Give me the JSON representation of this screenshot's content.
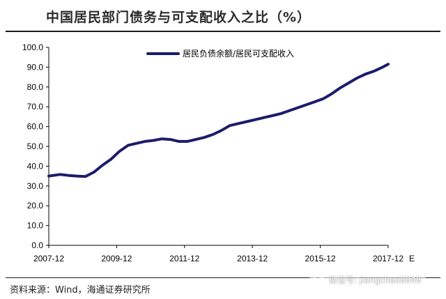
{
  "title": "中国居民部门债务与可支配收入之比（%）",
  "source": "资料来源：Wind，海通证券研究所",
  "watermark": "微信号: jiangchao8848",
  "colors": {
    "series": "#1c1c6b",
    "axis": "#000000"
  },
  "chart_data": {
    "type": "line",
    "ylim": [
      0,
      100
    ],
    "yticks": [
      "0.0",
      "10.0",
      "20.0",
      "30.0",
      "40.0",
      "50.0",
      "60.0",
      "70.0",
      "80.0",
      "90.0",
      "100.0"
    ],
    "xticks": [
      "2007-12",
      "2009-12",
      "2011-12",
      "2013-12",
      "2015-12",
      "2017-12"
    ],
    "x_suffix_label": "E",
    "grid": false,
    "legend_position": "top-right",
    "series": [
      {
        "name": "居民负债余额/居民可支配收入",
        "x": [
          2007.917,
          2008.25,
          2008.5,
          2008.75,
          2009.0,
          2009.25,
          2009.5,
          2009.75,
          2010.0,
          2010.25,
          2010.5,
          2010.75,
          2011.0,
          2011.25,
          2011.5,
          2011.75,
          2012.0,
          2012.25,
          2012.5,
          2012.75,
          2013.0,
          2013.25,
          2013.5,
          2013.75,
          2014.0,
          2014.25,
          2014.5,
          2014.75,
          2015.0,
          2015.25,
          2015.5,
          2015.75,
          2016.0,
          2016.25,
          2016.5,
          2016.75,
          2017.0,
          2017.25,
          2017.5,
          2017.75,
          2017.917
        ],
        "values": [
          35.0,
          35.8,
          35.3,
          35.0,
          34.8,
          37.0,
          40.5,
          43.5,
          47.5,
          50.5,
          51.5,
          52.5,
          53.0,
          53.8,
          53.5,
          52.5,
          52.5,
          53.5,
          54.5,
          56.0,
          58.0,
          60.5,
          61.5,
          62.5,
          63.5,
          64.5,
          65.5,
          66.5,
          68.0,
          69.5,
          71.0,
          72.5,
          74.0,
          76.5,
          79.5,
          82.0,
          84.5,
          86.5,
          88.0,
          90.0,
          91.5
        ]
      }
    ]
  }
}
